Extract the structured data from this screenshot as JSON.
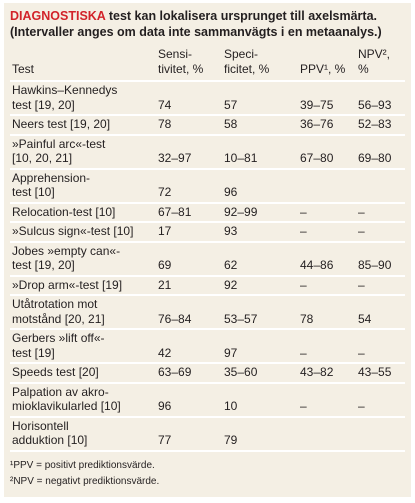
{
  "title": {
    "highlight": "DIAGNOSTISKA",
    "rest": " test kan lokalisera ursprunget till axelsmärta.",
    "subtitle": "(Intervaller anges om data inte sammanvägts i en metaanalys.)"
  },
  "table": {
    "header": [
      [
        "Test"
      ],
      [
        "Sensi-",
        "tivitet, %"
      ],
      [
        "Speci-",
        "ficitet, %"
      ],
      [
        "PPV¹, %"
      ],
      [
        "NPV², %"
      ]
    ],
    "rows": [
      [
        [
          "Hawkins–Kennedys",
          "test [19, 20]"
        ],
        "74",
        "57",
        "39–75",
        "56–93"
      ],
      [
        [
          "Neers test [19, 20]"
        ],
        "78",
        "58",
        "36–76",
        "52–83"
      ],
      [
        [
          "»Painful arc«-test",
          "[10, 20, 21]"
        ],
        "32–97",
        "10–81",
        "67–80",
        "69–80"
      ],
      [
        [
          "Apprehension-",
          "test [10]"
        ],
        "72",
        "96",
        null,
        null
      ],
      [
        [
          "Relocation-test [10]"
        ],
        "67–81",
        "92–99",
        "–",
        "–"
      ],
      [
        [
          "»Sulcus sign«-test  [10]"
        ],
        "17",
        "93",
        "–",
        "–"
      ],
      [
        [
          "Jobes »empty can«-",
          "test [19, 20]"
        ],
        "69",
        "62",
        "44–86",
        "85–90"
      ],
      [
        [
          "»Drop arm«-test [19]"
        ],
        "21",
        "92",
        "–",
        "–"
      ],
      [
        [
          "Utåtrotation mot",
          "motstånd [20, 21]"
        ],
        "76–84",
        "53–57",
        "78",
        "54"
      ],
      [
        [
          "Gerbers »lift off«-",
          "test [19]"
        ],
        "42",
        "97",
        "–",
        "–"
      ],
      [
        [
          "Speeds test [20]"
        ],
        "63–69",
        "35–60",
        "43–82",
        "43–55"
      ],
      [
        [
          "Palpation av akro-",
          "mioklavikularled [10]"
        ],
        "96",
        "10",
        "–",
        "–"
      ],
      [
        [
          "Horisontell",
          "adduktion [10]"
        ],
        "77",
        "79",
        null,
        null
      ]
    ]
  },
  "footnotes": [
    "¹PPV = positivt prediktionsvärde.",
    "²NPV = negativt prediktionsvärde."
  ]
}
